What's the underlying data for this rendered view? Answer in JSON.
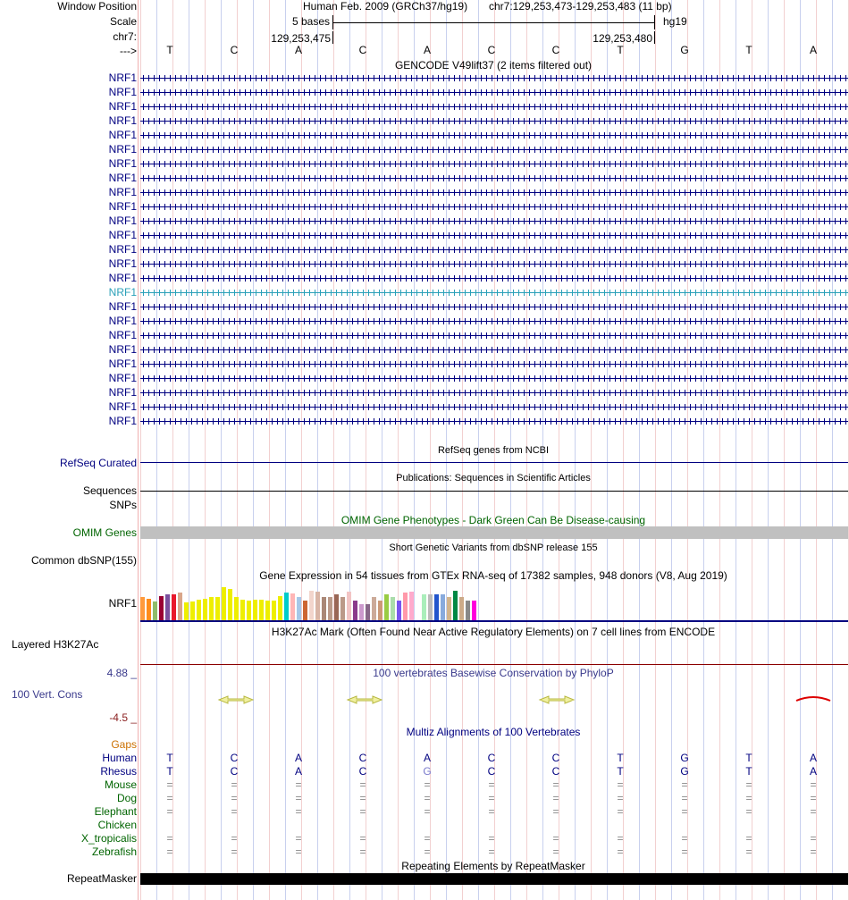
{
  "header": {
    "window_position_label": "Window Position",
    "scale_label": "Scale",
    "chrom_label": "chr7:",
    "strand_label": "--->",
    "assembly_text": "Human Feb. 2009 (GRCh37/hg19)",
    "position_text": "chr7:129,253,473-129,253,483 (11 bp)",
    "scale_text": "5 bases",
    "db_text": "hg19",
    "coord_left": "129,253,475",
    "coord_right": "129,253,480"
  },
  "bases": [
    "T",
    "C",
    "A",
    "C",
    "A",
    "C",
    "C",
    "T",
    "G",
    "T",
    "A"
  ],
  "gencode": {
    "title": "GENCODE V49lift37 (2 items filtered out)",
    "items": [
      "NRF1",
      "NRF1",
      "NRF1",
      "NRF1",
      "NRF1",
      "NRF1",
      "NRF1",
      "NRF1",
      "NRF1",
      "NRF1",
      "NRF1",
      "NRF1",
      "NRF1",
      "NRF1",
      "NRF1",
      "NRF1",
      "NRF1",
      "NRF1",
      "NRF1",
      "NRF1",
      "NRF1",
      "NRF1",
      "NRF1",
      "NRF1",
      "NRF1"
    ],
    "highlighted_index": 15
  },
  "refseq": {
    "title": "RefSeq genes from NCBI",
    "label": "RefSeq Curated"
  },
  "publications": {
    "title": "Publications: Sequences in Scientific Articles",
    "label1": "Sequences",
    "label2": "SNPs"
  },
  "omim": {
    "title": "OMIM Gene Phenotypes - Dark Green Can Be Disease-causing",
    "label": "OMIM Genes"
  },
  "dbsnp": {
    "title": "Short Genetic Variants from dbSNP release 155",
    "label": "Common dbSNP(155)"
  },
  "gtex": {
    "title": "Gene Expression in 54 tissues from GTEx RNA-seq of 17382 samples, 948 donors (V8, Aug 2019)",
    "label": "NRF1",
    "bars": [
      {
        "v": 0.58,
        "c": "#ff9a3c"
      },
      {
        "v": 0.55,
        "c": "#ff8c1a"
      },
      {
        "v": 0.48,
        "c": "#8fbc6a"
      },
      {
        "v": 0.62,
        "c": "#990033"
      },
      {
        "v": 0.65,
        "c": "#7a4f9e"
      },
      {
        "v": 0.65,
        "c": "#e8192c"
      },
      {
        "v": 0.7,
        "c": "#d9a68a"
      },
      {
        "v": 0.45,
        "c": "#eeee00"
      },
      {
        "v": 0.48,
        "c": "#eeee00"
      },
      {
        "v": 0.52,
        "c": "#eeee00"
      },
      {
        "v": 0.55,
        "c": "#eeee00"
      },
      {
        "v": 0.6,
        "c": "#eeee00"
      },
      {
        "v": 0.58,
        "c": "#eeee00"
      },
      {
        "v": 0.85,
        "c": "#eeee00"
      },
      {
        "v": 0.8,
        "c": "#eeee00"
      },
      {
        "v": 0.6,
        "c": "#eeee00"
      },
      {
        "v": 0.52,
        "c": "#eeee00"
      },
      {
        "v": 0.5,
        "c": "#eeee00"
      },
      {
        "v": 0.52,
        "c": "#eeee00"
      },
      {
        "v": 0.53,
        "c": "#eeee00"
      },
      {
        "v": 0.5,
        "c": "#eeee00"
      },
      {
        "v": 0.5,
        "c": "#eeee00"
      },
      {
        "v": 0.62,
        "c": "#eeee00"
      },
      {
        "v": 0.7,
        "c": "#00cccc"
      },
      {
        "v": 0.68,
        "c": "#ffb6b6"
      },
      {
        "v": 0.58,
        "c": "#a6c8e8"
      },
      {
        "v": 0.5,
        "c": "#cc6633"
      },
      {
        "v": 0.75,
        "c": "#f2d5cc"
      },
      {
        "v": 0.72,
        "c": "#d9b5a6"
      },
      {
        "v": 0.6,
        "c": "#aa8877"
      },
      {
        "v": 0.6,
        "c": "#bb9988"
      },
      {
        "v": 0.66,
        "c": "#996655"
      },
      {
        "v": 0.6,
        "c": "#bb9988"
      },
      {
        "v": 0.72,
        "c": "#f2c4c4"
      },
      {
        "v": 0.5,
        "c": "#8b3a8b"
      },
      {
        "v": 0.42,
        "c": "#cc99cc"
      },
      {
        "v": 0.4,
        "c": "#886688"
      },
      {
        "v": 0.58,
        "c": "#ccaa99"
      },
      {
        "v": 0.5,
        "c": "#cc9977"
      },
      {
        "v": 0.66,
        "c": "#99cc44"
      },
      {
        "v": 0.58,
        "c": "#aaddaa"
      },
      {
        "v": 0.5,
        "c": "#7755ee"
      },
      {
        "v": 0.7,
        "c": "#ff99aa"
      },
      {
        "v": 0.72,
        "c": "#ffaacc"
      },
      {
        "v": 0.4,
        "c": "#ffffff"
      },
      {
        "v": 0.66,
        "c": "#aaeebb"
      },
      {
        "v": 0.66,
        "c": "#bbbbbb"
      },
      {
        "v": 0.66,
        "c": "#2255cc"
      },
      {
        "v": 0.66,
        "c": "#88aadd"
      },
      {
        "v": 0.6,
        "c": "#d2b48c"
      },
      {
        "v": 0.74,
        "c": "#008844"
      },
      {
        "v": 0.6,
        "c": "#ccaa88"
      },
      {
        "v": 0.5,
        "c": "#888888"
      },
      {
        "v": 0.5,
        "c": "#ff00dd"
      }
    ]
  },
  "h3k27ac": {
    "title": "H3K27Ac Mark (Often Found Near Active Regulatory Elements) on 7 cell lines from ENCODE",
    "label": "Layered H3K27Ac"
  },
  "phylop": {
    "title": "100 vertebrates Basewise Conservation by PhyloP",
    "label": "100 Vert. Cons",
    "max": "4.88 _",
    "min": "-4.5 _"
  },
  "multiz": {
    "title": "Multiz Alignments of 100 Vertebrates",
    "gaps_label": "Gaps",
    "rows": [
      {
        "species": "Human",
        "bases": [
          "T",
          "C",
          "A",
          "C",
          "A",
          "C",
          "C",
          "T",
          "G",
          "T",
          "A"
        ]
      },
      {
        "species": "Rhesus",
        "bases": [
          "T",
          "C",
          "A",
          "C",
          "G",
          "C",
          "C",
          "T",
          "G",
          "T",
          "A"
        ]
      },
      {
        "species": "Mouse",
        "bases": [
          "=",
          "=",
          "=",
          "=",
          "=",
          "=",
          "=",
          "=",
          "=",
          "=",
          "="
        ]
      },
      {
        "species": "Dog",
        "bases": [
          "=",
          "=",
          "=",
          "=",
          "=",
          "=",
          "=",
          "=",
          "=",
          "=",
          "="
        ]
      },
      {
        "species": "Elephant",
        "bases": [
          "=",
          "=",
          "=",
          "=",
          "=",
          "=",
          "=",
          "=",
          "=",
          "=",
          "="
        ]
      },
      {
        "species": "Chicken",
        "bases": [
          "",
          "",
          "",
          "",
          "",
          "",
          "",
          "",
          "",
          "",
          ""
        ]
      },
      {
        "species": "X_tropicalis",
        "bases": [
          "=",
          "=",
          "=",
          "=",
          "=",
          "=",
          "=",
          "=",
          "=",
          "=",
          "="
        ]
      },
      {
        "species": "Zebrafish",
        "bases": [
          "=",
          "=",
          "=",
          "=",
          "=",
          "=",
          "=",
          "=",
          "=",
          "=",
          "="
        ]
      }
    ]
  },
  "repeatmasker": {
    "title": "Repeating Elements by RepeatMasker",
    "label": "RepeatMasker"
  },
  "colors": {
    "navy": "#000080",
    "green": "#006400",
    "gaps": "#cc7000",
    "phylop": "#3a3a8c",
    "red_line": "#8b0000",
    "cons_min": "#8b2020"
  }
}
